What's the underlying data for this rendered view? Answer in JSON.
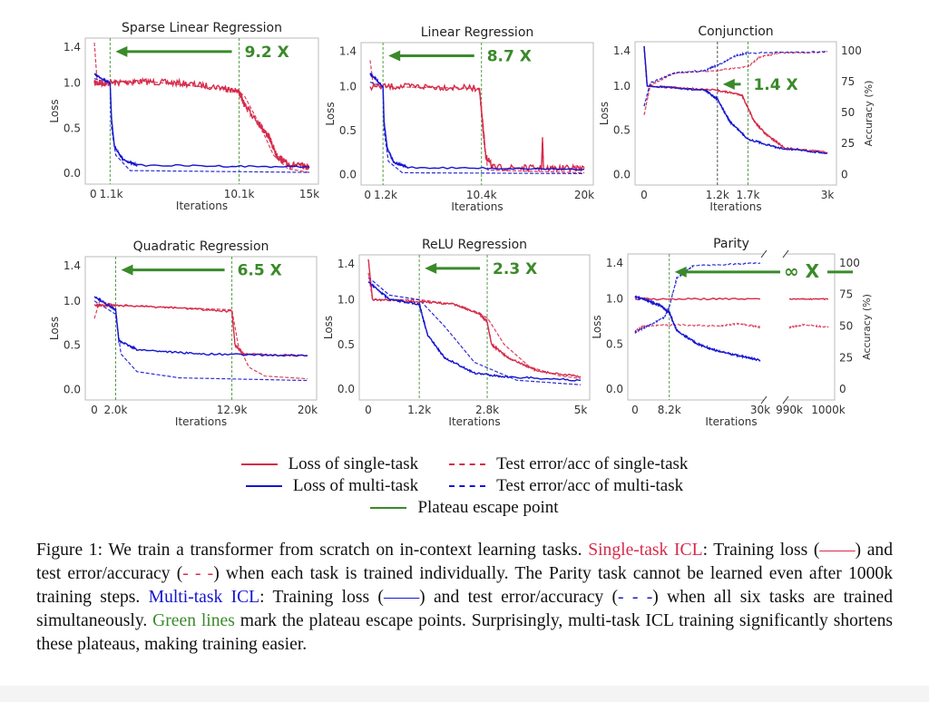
{
  "colors": {
    "single": "#d62b4a",
    "multi": "#1515d0",
    "plateau": "#3a8a2a",
    "arrow": "#3a8a2a",
    "dark_plateau": "#333333"
  },
  "chart_data": [
    {
      "type": "line",
      "title": "Sparse Linear Regression",
      "xlabel": "Iterations",
      "ylabel": "Loss",
      "xlim": [
        0,
        15
      ],
      "ylim": [
        -0.12,
        1.5
      ],
      "xticks": [
        {
          "v": 0,
          "label": "0"
        },
        {
          "v": 1.1,
          "label": "1.1k"
        },
        {
          "v": 10.1,
          "label": "10.1k"
        },
        {
          "v": 15,
          "label": "15k"
        }
      ],
      "yticks": [
        {
          "v": 0,
          "label": "0.0"
        },
        {
          "v": 0.5,
          "label": "0.5"
        },
        {
          "v": 1.0,
          "label": "1.0"
        },
        {
          "v": 1.4,
          "label": "1.4"
        }
      ],
      "plateau": [
        1.1,
        10.1
      ],
      "speedup": "9.2 X",
      "series": {
        "single_loss": [
          [
            0,
            1.0
          ],
          [
            1,
            1.0
          ],
          [
            3,
            1.02
          ],
          [
            6,
            1.0
          ],
          [
            9,
            0.95
          ],
          [
            10.1,
            0.9
          ],
          [
            10.5,
            0.75
          ],
          [
            11.5,
            0.55
          ],
          [
            12.2,
            0.4
          ],
          [
            12.7,
            0.2
          ],
          [
            13.5,
            0.1
          ],
          [
            15,
            0.07
          ]
        ],
        "single_test": [
          [
            0,
            1.45
          ],
          [
            0.2,
            1.0
          ],
          [
            3,
            1.03
          ],
          [
            10,
            0.92
          ],
          [
            10.5,
            0.85
          ],
          [
            11.5,
            0.55
          ],
          [
            12.5,
            0.2
          ],
          [
            13.5,
            0.05
          ],
          [
            15,
            0.01
          ]
        ],
        "multi_loss": [
          [
            0,
            1.1
          ],
          [
            1.1,
            1.0
          ],
          [
            1.2,
            0.6
          ],
          [
            1.4,
            0.3
          ],
          [
            2,
            0.15
          ],
          [
            3,
            0.09
          ],
          [
            15,
            0.07
          ]
        ],
        "multi_test": [
          [
            0,
            1.05
          ],
          [
            1.1,
            1.0
          ],
          [
            1.2,
            0.5
          ],
          [
            1.5,
            0.2
          ],
          [
            2.5,
            0.03
          ],
          [
            15,
            0.01
          ]
        ]
      }
    },
    {
      "type": "line",
      "title": "Linear Regression",
      "xlabel": "Iterations",
      "ylabel": "Loss",
      "xlim": [
        0,
        20
      ],
      "ylim": [
        -0.12,
        1.5
      ],
      "xticks": [
        {
          "v": 0,
          "label": "0"
        },
        {
          "v": 1.2,
          "label": "1.2k"
        },
        {
          "v": 10.4,
          "label": "10.4k"
        },
        {
          "v": 20,
          "label": "20k"
        }
      ],
      "yticks": [
        {
          "v": 0,
          "label": "0.0"
        },
        {
          "v": 0.5,
          "label": "0.5"
        },
        {
          "v": 1.0,
          "label": "1.0"
        },
        {
          "v": 1.4,
          "label": "1.4"
        }
      ],
      "plateau": [
        1.2,
        10.4
      ],
      "speedup": "8.7 X",
      "series": {
        "single_loss": [
          [
            0,
            1.0
          ],
          [
            5,
            1.0
          ],
          [
            10.2,
            0.98
          ],
          [
            10.5,
            0.6
          ],
          [
            10.8,
            0.2
          ],
          [
            11.5,
            0.08
          ],
          [
            16,
            0.07
          ],
          [
            16.1,
            0.4
          ],
          [
            16.2,
            0.07
          ],
          [
            20,
            0.07
          ]
        ],
        "single_test": [
          [
            0,
            1.3
          ],
          [
            0.3,
            1.0
          ],
          [
            10.2,
            0.98
          ],
          [
            10.6,
            0.4
          ],
          [
            11,
            0.05
          ],
          [
            20,
            0.02
          ]
        ],
        "multi_loss": [
          [
            0,
            1.15
          ],
          [
            1.2,
            1.0
          ],
          [
            1.3,
            0.6
          ],
          [
            1.6,
            0.3
          ],
          [
            2.2,
            0.14
          ],
          [
            3.5,
            0.08
          ],
          [
            20,
            0.06
          ]
        ],
        "multi_test": [
          [
            0,
            1.05
          ],
          [
            1.2,
            1.0
          ],
          [
            1.3,
            0.5
          ],
          [
            1.7,
            0.15
          ],
          [
            3,
            0.02
          ],
          [
            20,
            0.01
          ]
        ]
      }
    },
    {
      "type": "line",
      "title": "Conjunction",
      "xlabel": "Iterations",
      "ylabel": "Loss",
      "y2label": "Accuracy (%)",
      "xlim": [
        0,
        3
      ],
      "ylim": [
        -0.12,
        1.5
      ],
      "y2lim": [
        0,
        100
      ],
      "xticks": [
        {
          "v": 0,
          "label": "0"
        },
        {
          "v": 1.2,
          "label": "1.2k"
        },
        {
          "v": 1.7,
          "label": "1.7k"
        },
        {
          "v": 3,
          "label": "3k"
        }
      ],
      "yticks": [
        {
          "v": 0,
          "label": "0.0"
        },
        {
          "v": 0.5,
          "label": "0.5"
        },
        {
          "v": 1.0,
          "label": "1.0"
        },
        {
          "v": 1.4,
          "label": "1.4"
        }
      ],
      "y2ticks": [
        {
          "v": 0,
          "label": "0"
        },
        {
          "v": 25,
          "label": "25"
        },
        {
          "v": 50,
          "label": "50"
        },
        {
          "v": 75,
          "label": "75"
        },
        {
          "v": 100,
          "label": "100"
        }
      ],
      "plateau": [
        1.2,
        1.7
      ],
      "speedup": "1.4 X",
      "series": {
        "single_loss": [
          [
            0,
            1.45
          ],
          [
            0.05,
            1.0
          ],
          [
            1.2,
            0.95
          ],
          [
            1.6,
            0.9
          ],
          [
            1.8,
            0.6
          ],
          [
            2,
            0.45
          ],
          [
            2.3,
            0.3
          ],
          [
            3,
            0.25
          ]
        ],
        "single_test_acc": [
          [
            0,
            48
          ],
          [
            0.1,
            72
          ],
          [
            0.5,
            82
          ],
          [
            1.2,
            84
          ],
          [
            1.7,
            87
          ],
          [
            1.9,
            95
          ],
          [
            2.2,
            98
          ],
          [
            3,
            99
          ]
        ],
        "multi_loss": [
          [
            0,
            1.45
          ],
          [
            0.05,
            1.0
          ],
          [
            1.0,
            0.95
          ],
          [
            1.2,
            0.85
          ],
          [
            1.4,
            0.6
          ],
          [
            1.7,
            0.4
          ],
          [
            2.2,
            0.3
          ],
          [
            3,
            0.24
          ]
        ],
        "multi_test_acc": [
          [
            0,
            55
          ],
          [
            0.1,
            74
          ],
          [
            0.5,
            82
          ],
          [
            1.0,
            84
          ],
          [
            1.2,
            88
          ],
          [
            1.5,
            96
          ],
          [
            1.7,
            98
          ],
          [
            3,
            99
          ]
        ]
      }
    },
    {
      "type": "line",
      "title": "Quadratic Regression",
      "xlabel": "Iterations",
      "ylabel": "Loss",
      "xlim": [
        0,
        20
      ],
      "ylim": [
        -0.12,
        1.5
      ],
      "xticks": [
        {
          "v": 0,
          "label": "0"
        },
        {
          "v": 2.0,
          "label": "2.0k"
        },
        {
          "v": 12.9,
          "label": "12.9k"
        },
        {
          "v": 20,
          "label": "20k"
        }
      ],
      "yticks": [
        {
          "v": 0,
          "label": "0.0"
        },
        {
          "v": 0.5,
          "label": "0.5"
        },
        {
          "v": 1.0,
          "label": "1.0"
        },
        {
          "v": 1.4,
          "label": "1.4"
        }
      ],
      "plateau": [
        2.0,
        12.9
      ],
      "speedup": "6.5 X",
      "series": {
        "single_loss": [
          [
            0,
            0.95
          ],
          [
            2,
            0.95
          ],
          [
            8,
            0.92
          ],
          [
            12.9,
            0.88
          ],
          [
            13.2,
            0.5
          ],
          [
            14,
            0.4
          ],
          [
            20,
            0.38
          ]
        ],
        "single_test": [
          [
            0,
            0.8
          ],
          [
            0.5,
            1.0
          ],
          [
            2,
            0.95
          ],
          [
            12.9,
            0.9
          ],
          [
            13.5,
            0.5
          ],
          [
            14.5,
            0.25
          ],
          [
            16,
            0.15
          ],
          [
            20,
            0.12
          ]
        ],
        "multi_loss": [
          [
            0,
            1.05
          ],
          [
            2.0,
            0.9
          ],
          [
            2.3,
            0.55
          ],
          [
            4,
            0.45
          ],
          [
            10,
            0.4
          ],
          [
            20,
            0.38
          ]
        ],
        "multi_test": [
          [
            0,
            1.0
          ],
          [
            2,
            0.85
          ],
          [
            2.5,
            0.4
          ],
          [
            4,
            0.2
          ],
          [
            8,
            0.13
          ],
          [
            20,
            0.1
          ]
        ]
      }
    },
    {
      "type": "line",
      "title": "ReLU Regression",
      "xlabel": "Iterations",
      "ylabel": "Loss",
      "xlim": [
        0,
        5
      ],
      "ylim": [
        -0.12,
        1.5
      ],
      "xticks": [
        {
          "v": 0,
          "label": "0"
        },
        {
          "v": 1.2,
          "label": "1.2k"
        },
        {
          "v": 2.8,
          "label": "2.8k"
        },
        {
          "v": 5,
          "label": "5k"
        }
      ],
      "yticks": [
        {
          "v": 0,
          "label": "0.0"
        },
        {
          "v": 0.5,
          "label": "0.5"
        },
        {
          "v": 1.0,
          "label": "1.0"
        },
        {
          "v": 1.4,
          "label": "1.4"
        }
      ],
      "plateau": [
        1.2,
        2.8
      ],
      "speedup": "2.3 X",
      "series": {
        "single_loss": [
          [
            0,
            1.45
          ],
          [
            0.1,
            1.0
          ],
          [
            1.2,
            0.98
          ],
          [
            2.0,
            0.95
          ],
          [
            2.6,
            0.85
          ],
          [
            2.8,
            0.75
          ],
          [
            2.9,
            0.5
          ],
          [
            3.3,
            0.35
          ],
          [
            4,
            0.2
          ],
          [
            5,
            0.14
          ]
        ],
        "single_test": [
          [
            0,
            1.3
          ],
          [
            0.1,
            1.0
          ],
          [
            1.2,
            1.0
          ],
          [
            2,
            0.95
          ],
          [
            2.8,
            0.8
          ],
          [
            3.2,
            0.5
          ],
          [
            3.8,
            0.25
          ],
          [
            4.5,
            0.15
          ],
          [
            5,
            0.12
          ]
        ],
        "multi_loss": [
          [
            0,
            1.2
          ],
          [
            0.5,
            1.0
          ],
          [
            1.2,
            0.95
          ],
          [
            1.4,
            0.6
          ],
          [
            1.8,
            0.35
          ],
          [
            2.5,
            0.18
          ],
          [
            3.2,
            0.14
          ],
          [
            5,
            0.1
          ]
        ],
        "multi_test": [
          [
            0,
            1.25
          ],
          [
            0.5,
            1.05
          ],
          [
            1.2,
            1.0
          ],
          [
            1.8,
            0.7
          ],
          [
            2.5,
            0.3
          ],
          [
            3.5,
            0.1
          ],
          [
            5,
            0.05
          ]
        ]
      }
    },
    {
      "type": "line",
      "title": "Parity",
      "xlabel": "Iterations",
      "ylabel": "Loss",
      "y2label": "Accuracy (%)",
      "xlim": [
        0,
        1000
      ],
      "x_break": [
        30,
        990
      ],
      "ylim": [
        -0.12,
        1.5
      ],
      "y2lim": [
        0,
        100
      ],
      "xticks": [
        {
          "v": 0,
          "label": "0"
        },
        {
          "v": 8.2,
          "label": "8.2k"
        },
        {
          "v": 30,
          "label": "30k"
        },
        {
          "v": 990,
          "label": "990k"
        },
        {
          "v": 1000,
          "label": "1000k"
        }
      ],
      "yticks": [
        {
          "v": 0,
          "label": "0.0"
        },
        {
          "v": 0.5,
          "label": "0.5"
        },
        {
          "v": 1.0,
          "label": "1.0"
        },
        {
          "v": 1.4,
          "label": "1.4"
        }
      ],
      "y2ticks": [
        {
          "v": 0,
          "label": "0"
        },
        {
          "v": 25,
          "label": "25"
        },
        {
          "v": 50,
          "label": "50"
        },
        {
          "v": 75,
          "label": "75"
        },
        {
          "v": 100,
          "label": "100"
        }
      ],
      "plateau": [
        8.2
      ],
      "speedup": "∞ X",
      "series": {
        "single_loss": [
          [
            0,
            1.0
          ],
          [
            30,
            1.0
          ]
        ],
        "single_loss_late": [
          [
            990,
            1.0
          ],
          [
            1000,
            1.0
          ]
        ],
        "single_test_acc": [
          [
            0,
            46
          ],
          [
            2,
            50
          ],
          [
            10,
            51
          ],
          [
            20,
            50
          ],
          [
            25,
            52
          ],
          [
            30,
            49
          ]
        ],
        "single_test_acc_late": [
          [
            990,
            49
          ],
          [
            994,
            51
          ],
          [
            1000,
            49
          ]
        ],
        "multi_loss": [
          [
            0,
            1.03
          ],
          [
            3,
            0.98
          ],
          [
            6,
            0.93
          ],
          [
            8.2,
            0.85
          ],
          [
            10,
            0.65
          ],
          [
            15,
            0.5
          ],
          [
            20,
            0.42
          ],
          [
            25,
            0.37
          ],
          [
            30,
            0.32
          ]
        ],
        "multi_test_acc": [
          [
            0,
            45
          ],
          [
            3,
            50
          ],
          [
            7,
            57
          ],
          [
            8.2,
            65
          ],
          [
            10,
            88
          ],
          [
            14,
            98
          ],
          [
            30,
            100
          ]
        ]
      }
    }
  ],
  "legend": {
    "single_loss": "Loss of single-task",
    "single_test": "Test error/acc of single-task",
    "multi_loss": "Loss of multi-task",
    "multi_test": "Test error/acc of multi-task",
    "plateau": "Plateau escape point"
  },
  "caption": {
    "p1": "Figure 1: We train a transformer from scratch on in-context learning tasks. ",
    "single_icl": "Single-task ICL",
    "p2": ": Training loss (",
    "solid_sym": "——",
    "p3": ") and test error/accuracy (",
    "dash_sym": "- - -",
    "p4": ") when each task is trained individually.  The Parity task cannot be learned even after 1000k training steps. ",
    "multi_icl": "Multi-task ICL",
    "p5": ": Training loss (",
    "p6": ") and test error/accuracy (",
    "p7": ") when all six tasks are trained simultaneously. ",
    "green_lines": "Green lines",
    "p8": " mark the plateau escape points.  Surprisingly, multi-task ICL training significantly shortens these plateaus, making training easier."
  }
}
